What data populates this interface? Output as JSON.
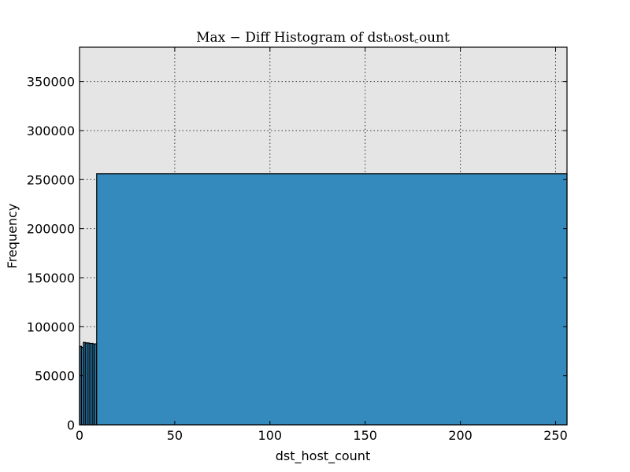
{
  "chart_data": {
    "type": "bar",
    "title": "Max − Diff Histogram of dstₕost꜀ount",
    "xlabel": "dst_host_count",
    "ylabel": "Frequency",
    "xlim": [
      0,
      256
    ],
    "ylim": [
      0,
      385000
    ],
    "x_ticks": [
      0,
      50,
      100,
      150,
      200,
      250
    ],
    "y_ticks": [
      0,
      50000,
      100000,
      150000,
      200000,
      250000,
      300000,
      350000
    ],
    "grid": true,
    "bins": [
      {
        "start": 0,
        "end": 1,
        "value": 80000
      },
      {
        "start": 1,
        "end": 2,
        "value": 79000
      },
      {
        "start": 2,
        "end": 3,
        "value": 84000
      },
      {
        "start": 3,
        "end": 4,
        "value": 83500
      },
      {
        "start": 4,
        "end": 5,
        "value": 83500
      },
      {
        "start": 5,
        "end": 6,
        "value": 83000
      },
      {
        "start": 6,
        "end": 7,
        "value": 83000
      },
      {
        "start": 7,
        "end": 8,
        "value": 82500
      },
      {
        "start": 8,
        "end": 9,
        "value": 82500
      },
      {
        "start": 9,
        "end": 256,
        "value": 256000
      }
    ]
  },
  "colors": {
    "bar_fill": "#348abd",
    "plot_background": "#e5e5e5"
  }
}
